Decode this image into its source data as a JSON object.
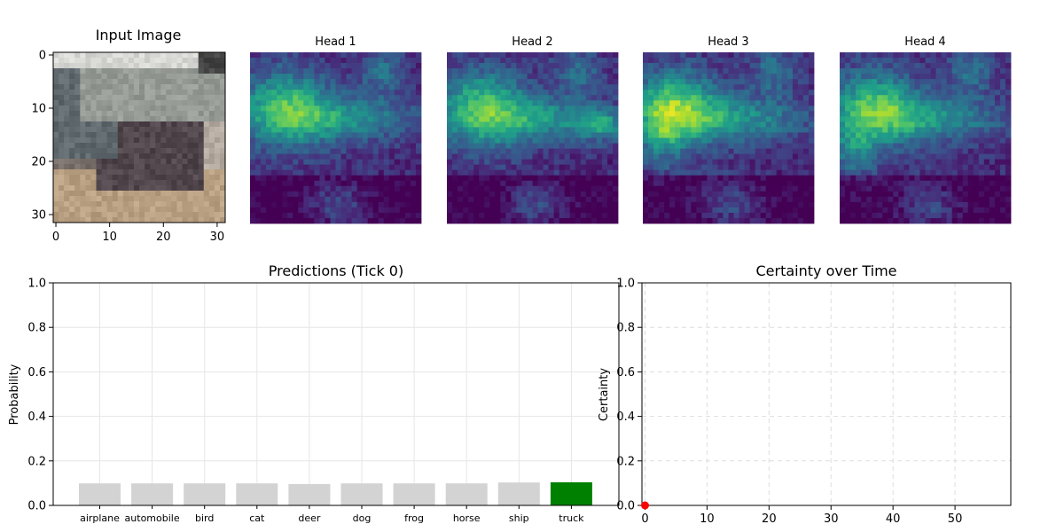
{
  "figure": {
    "input_title": "Input Image",
    "input_ticks_x": [
      0,
      10,
      20,
      30
    ],
    "input_ticks_y": [
      0,
      10,
      20,
      30
    ],
    "head_titles": [
      "Head 1",
      "Head 2",
      "Head 3",
      "Head 4"
    ],
    "predictions_title": "Predictions (Tick 0)",
    "certainty_title": "Certainty over Time"
  },
  "chart_data": [
    {
      "type": "heatmap",
      "title": "Input Image",
      "grid_size": [
        32,
        32
      ],
      "description_colormap": "rgb",
      "xlim": [
        0,
        31
      ],
      "ylim": [
        31,
        0
      ],
      "xticks": [
        0,
        10,
        20,
        30
      ],
      "yticks": [
        0,
        10,
        20,
        30
      ]
    },
    {
      "type": "heatmap",
      "titles": [
        "Head 1",
        "Head 2",
        "Head 3",
        "Head 4"
      ],
      "grid_size": [
        32,
        32
      ],
      "colormap": "viridis"
    },
    {
      "type": "bar",
      "title": "Predictions (Tick 0)",
      "categories": [
        "airplane",
        "automobile",
        "bird",
        "cat",
        "deer",
        "dog",
        "frog",
        "horse",
        "ship",
        "truck"
      ],
      "values": [
        0.099,
        0.099,
        0.099,
        0.099,
        0.096,
        0.099,
        0.099,
        0.099,
        0.103,
        0.104
      ],
      "highlight_index": 9,
      "bar_color": "#d3d3d3",
      "highlight_color": "#008000",
      "ylabel": "Probability",
      "ylim": [
        0,
        1.0
      ],
      "yticks": [
        "0.0",
        "0.2",
        "0.4",
        "0.6",
        "0.8",
        "1.0"
      ],
      "grid": true
    },
    {
      "type": "line",
      "title": "Certainty over Time",
      "x": [
        0
      ],
      "y": [
        0.0
      ],
      "marker_color": "#ff0000",
      "ylabel": "Certainty",
      "xlim": [
        -0.5,
        59
      ],
      "ylim": [
        0,
        1.0
      ],
      "xticks": [
        "0",
        "10",
        "20",
        "30",
        "40",
        "50"
      ],
      "yticks": [
        "0.0",
        "0.2",
        "0.4",
        "0.6",
        "0.8",
        "1.0"
      ],
      "grid": "dashed"
    }
  ]
}
